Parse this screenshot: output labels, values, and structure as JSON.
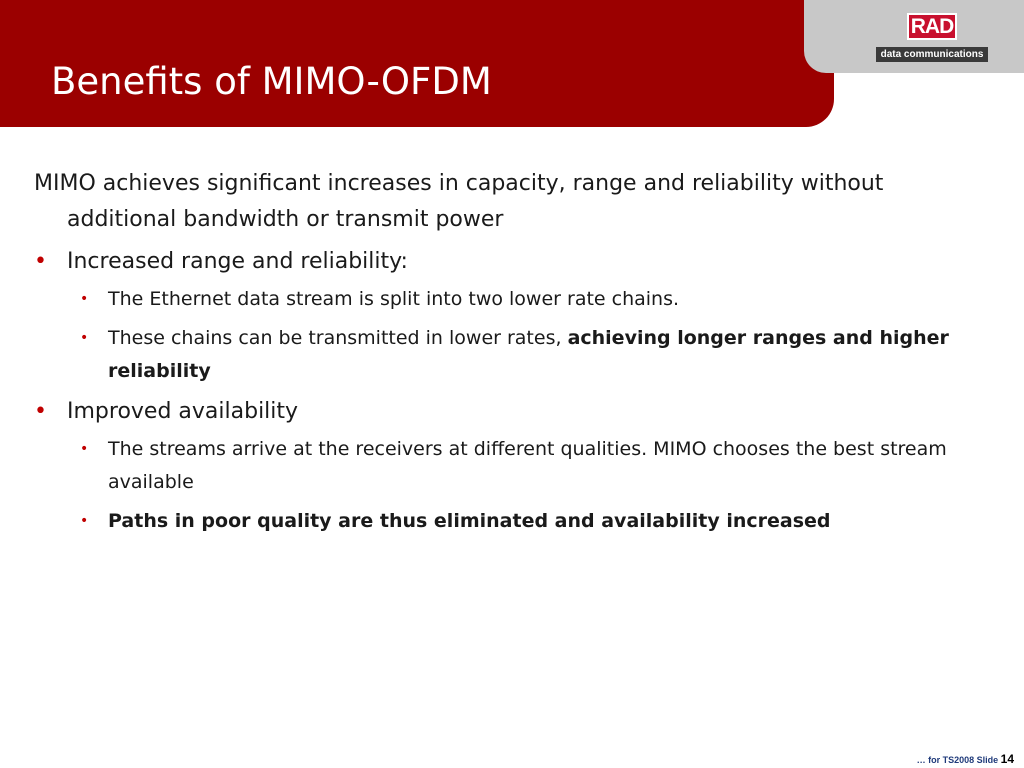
{
  "slide": {
    "title": "Benefits of MIMO-OFDM"
  },
  "logo": {
    "brand": "RAD",
    "subtitle": "data communications"
  },
  "body": {
    "intro": "MIMO achieves significant increases in capacity, range and reliability without additional bandwidth or transmit power",
    "bullet1": {
      "text": "Increased range and reliability:",
      "sub1": "The Ethernet data stream is split into two lower rate chains.",
      "sub2_plain": "These chains can be transmitted in lower rates, ",
      "sub2_bold": "achieving longer ranges and higher reliability"
    },
    "bullet2": {
      "text": "Improved availability",
      "sub1": "The streams arrive at the receivers at different qualities. MIMO chooses the best stream available",
      "sub2_bold": "Paths in poor quality are thus eliminated and availability increased"
    },
    "bullet_glyph": "•"
  },
  "footer": {
    "label": "… for TS2008  Slide",
    "slide_number": "14"
  },
  "colors": {
    "title_bar": "#9b0000",
    "bullet": "#c00000",
    "logo_panel": "#c8c8c8"
  }
}
